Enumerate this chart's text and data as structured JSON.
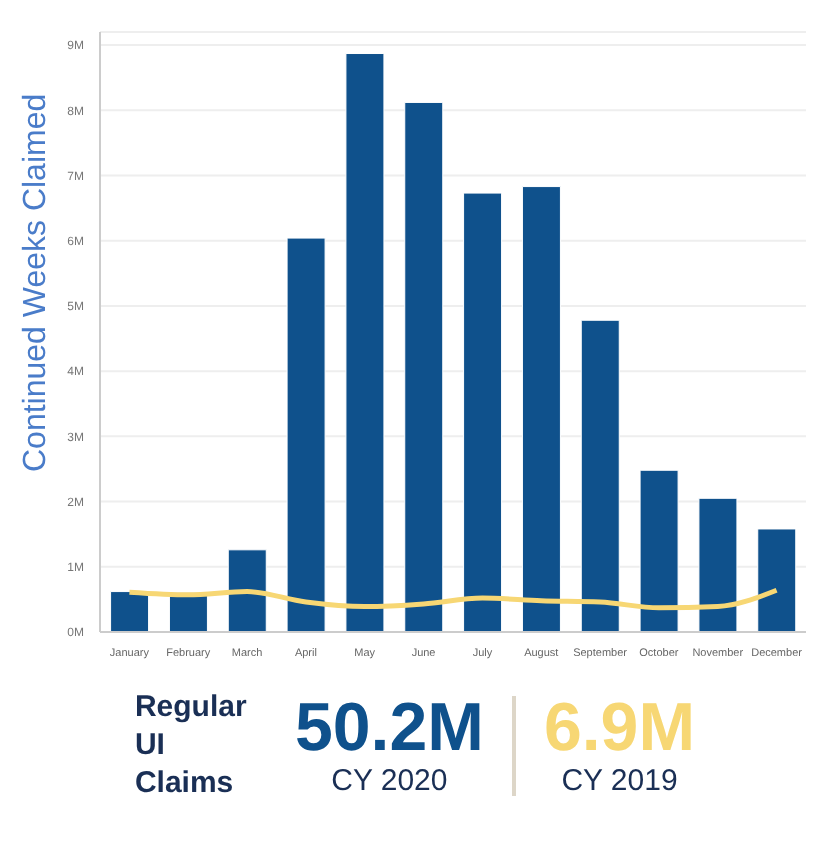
{
  "chart_data": {
    "type": "bar",
    "ylabel": "Continued Weeks Claimed",
    "categories": [
      "January",
      "February",
      "March",
      "April",
      "May",
      "June",
      "July",
      "August",
      "September",
      "October",
      "November",
      "December"
    ],
    "series": [
      {
        "color": "#0f518c",
        "values": [
          0.62,
          0.6,
          1.26,
          6.04,
          8.87,
          8.12,
          6.73,
          6.83,
          4.78,
          2.48,
          2.05,
          1.58
        ]
      },
      {
        "type": "line",
        "color": "#f7d774",
        "values": [
          0.61,
          0.57,
          0.62,
          0.46,
          0.39,
          0.43,
          0.52,
          0.48,
          0.46,
          0.37,
          0.39,
          0.64
        ]
      }
    ],
    "ylim": [
      0,
      9.2
    ],
    "yticks": [
      {
        "value": 0,
        "label": "0M"
      },
      {
        "value": 1,
        "label": "1M"
      },
      {
        "value": 2,
        "label": "2M"
      },
      {
        "value": 3,
        "label": "3M"
      },
      {
        "value": 4,
        "label": "4M"
      },
      {
        "value": 5,
        "label": "5M"
      },
      {
        "value": 6,
        "label": "6M"
      },
      {
        "value": 7,
        "label": "7M"
      },
      {
        "value": 8,
        "label": "8M"
      },
      {
        "value": 9,
        "label": "9M"
      }
    ],
    "grid": "y",
    "marker": "none",
    "legend": false,
    "annotations": [
      "Regular UI Claims",
      "50.2M",
      "CY 2020",
      "6.9M",
      "CY 2019"
    ]
  }
}
